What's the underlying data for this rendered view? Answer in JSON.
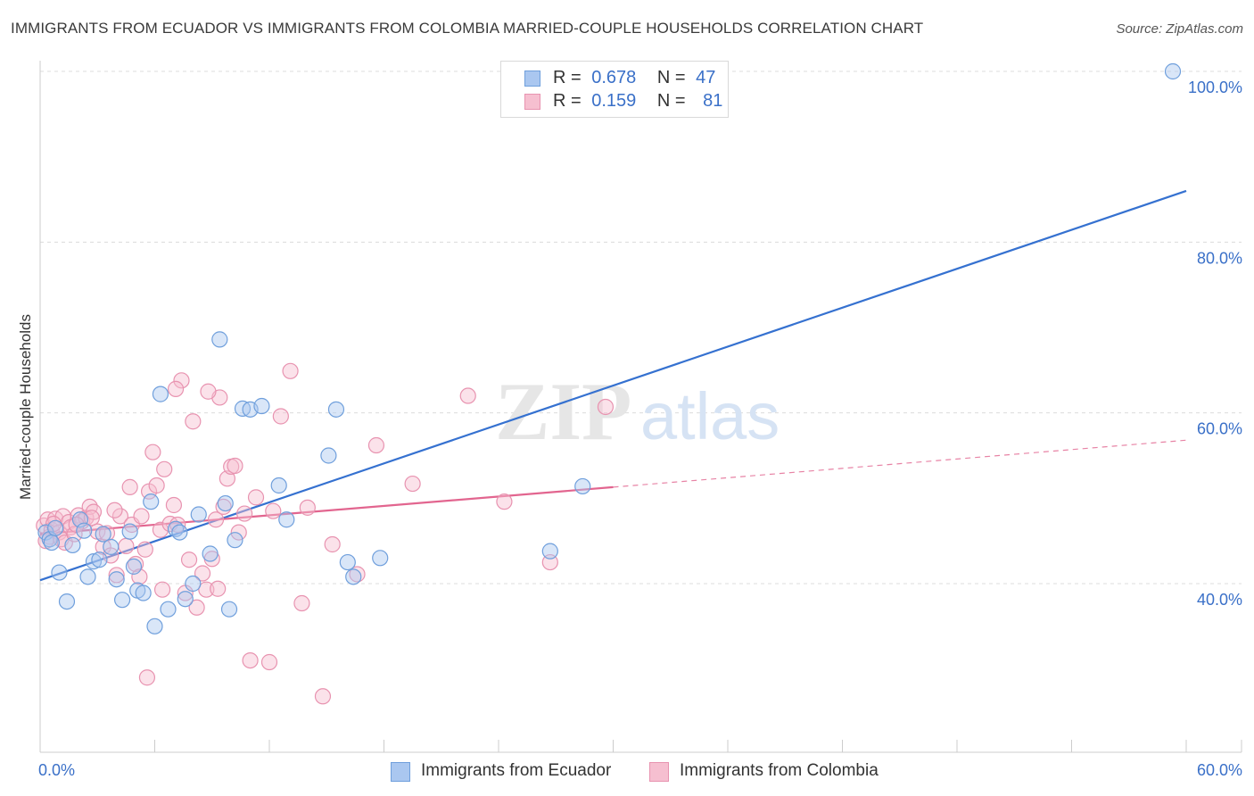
{
  "header": {
    "title": "IMMIGRANTS FROM ECUADOR VS IMMIGRANTS FROM COLOMBIA MARRIED-COUPLE HOUSEHOLDS CORRELATION CHART",
    "source": "Source: ZipAtlas.com"
  },
  "legend": {
    "ecuador": {
      "r_label": "R =",
      "r_value": "0.678",
      "n_label": "N =",
      "n_value": "47"
    },
    "colombia": {
      "r_label": "R =",
      "r_value": "0.159",
      "n_label": "N =",
      "n_value": "81"
    }
  },
  "bottom_legend": {
    "ecuador": "Immigrants from Ecuador",
    "colombia": "Immigrants from Colombia"
  },
  "watermark": {
    "zip": "ZIP",
    "atlas": "atlas"
  },
  "colors": {
    "ecuador_fill": "#aac7f0",
    "ecuador_stroke": "#6f9fdc",
    "ecuador_line": "#3571d0",
    "colombia_fill": "#f6bfd0",
    "colombia_stroke": "#e893b0",
    "colombia_line": "#e2658f",
    "tick_label": "#3a70c8",
    "grid": "#dcdcdc"
  },
  "chart_data": {
    "type": "scatter",
    "title": "IMMIGRANTS FROM ECUADOR VS IMMIGRANTS FROM COLOMBIA MARRIED-COUPLE HOUSEHOLDS CORRELATION CHART",
    "xlabel": "",
    "ylabel": "Married-couple Households",
    "xlim": [
      0,
      60
    ],
    "ylim": [
      20,
      102
    ],
    "x_tick_labels": [
      "0.0%",
      "60.0%"
    ],
    "y_ticks": [
      40,
      60,
      80,
      100
    ],
    "y_tick_labels": [
      "40.0%",
      "60.0%",
      "80.0%",
      "100.0%"
    ],
    "grid": true,
    "series": [
      {
        "name": "Immigrants from Ecuador",
        "r": 0.678,
        "n": 47,
        "trend": {
          "x": [
            0,
            60
          ],
          "y": [
            40.4,
            86.0
          ],
          "dashed_from": null
        },
        "points": [
          [
            0.3,
            46.0
          ],
          [
            0.5,
            45.2
          ],
          [
            0.6,
            44.8
          ],
          [
            0.8,
            46.5
          ],
          [
            1.0,
            41.3
          ],
          [
            1.4,
            37.9
          ],
          [
            1.7,
            44.5
          ],
          [
            2.1,
            47.5
          ],
          [
            2.3,
            46.2
          ],
          [
            2.5,
            40.8
          ],
          [
            2.8,
            42.6
          ],
          [
            3.1,
            42.8
          ],
          [
            3.3,
            45.8
          ],
          [
            3.7,
            44.3
          ],
          [
            4.0,
            40.5
          ],
          [
            4.3,
            38.1
          ],
          [
            4.7,
            46.1
          ],
          [
            4.9,
            42.0
          ],
          [
            5.1,
            39.2
          ],
          [
            5.4,
            38.9
          ],
          [
            5.8,
            49.6
          ],
          [
            6.0,
            35.0
          ],
          [
            6.3,
            62.2
          ],
          [
            6.7,
            37.0
          ],
          [
            7.1,
            46.4
          ],
          [
            7.3,
            46.0
          ],
          [
            7.6,
            38.2
          ],
          [
            8.0,
            40.0
          ],
          [
            8.3,
            48.1
          ],
          [
            8.9,
            43.5
          ],
          [
            9.4,
            68.6
          ],
          [
            9.7,
            49.4
          ],
          [
            9.9,
            37.0
          ],
          [
            10.2,
            45.1
          ],
          [
            10.6,
            60.5
          ],
          [
            11.0,
            60.4
          ],
          [
            11.6,
            60.8
          ],
          [
            12.5,
            51.5
          ],
          [
            12.9,
            47.5
          ],
          [
            15.1,
            55.0
          ],
          [
            15.5,
            60.4
          ],
          [
            16.1,
            42.5
          ],
          [
            16.4,
            40.8
          ],
          [
            17.8,
            43.0
          ],
          [
            26.7,
            43.8
          ],
          [
            28.4,
            51.4
          ],
          [
            59.3,
            100.0
          ]
        ]
      },
      {
        "name": "Immigrants from Colombia",
        "r": 0.159,
        "n": 81,
        "trend": {
          "x": [
            0,
            60
          ],
          "y": [
            45.8,
            56.8
          ],
          "dashed_from": 30
        },
        "points": [
          [
            0.2,
            46.8
          ],
          [
            0.4,
            47.5
          ],
          [
            0.5,
            45.5
          ],
          [
            0.6,
            46.3
          ],
          [
            0.8,
            47.6
          ],
          [
            1.0,
            46.0
          ],
          [
            1.1,
            45.2
          ],
          [
            1.2,
            47.9
          ],
          [
            1.3,
            44.8
          ],
          [
            1.5,
            47.2
          ],
          [
            1.6,
            46.6
          ],
          [
            1.8,
            45.8
          ],
          [
            2.0,
            48.0
          ],
          [
            2.2,
            47.3
          ],
          [
            2.4,
            47.7
          ],
          [
            2.6,
            49.0
          ],
          [
            2.8,
            48.4
          ],
          [
            3.0,
            46.1
          ],
          [
            3.3,
            44.3
          ],
          [
            3.5,
            45.9
          ],
          [
            3.7,
            43.3
          ],
          [
            4.0,
            41.0
          ],
          [
            4.2,
            47.9
          ],
          [
            4.5,
            44.4
          ],
          [
            4.7,
            51.3
          ],
          [
            4.8,
            46.9
          ],
          [
            5.0,
            42.3
          ],
          [
            5.2,
            40.8
          ],
          [
            5.5,
            44.0
          ],
          [
            5.7,
            50.8
          ],
          [
            5.9,
            55.4
          ],
          [
            6.1,
            51.5
          ],
          [
            6.3,
            46.3
          ],
          [
            6.5,
            53.4
          ],
          [
            6.8,
            47.0
          ],
          [
            7.0,
            49.2
          ],
          [
            7.2,
            46.9
          ],
          [
            7.4,
            63.8
          ],
          [
            7.6,
            38.9
          ],
          [
            7.8,
            42.8
          ],
          [
            8.0,
            59.0
          ],
          [
            8.2,
            37.2
          ],
          [
            8.5,
            41.2
          ],
          [
            8.7,
            39.3
          ],
          [
            9.0,
            42.9
          ],
          [
            9.2,
            47.5
          ],
          [
            9.4,
            61.8
          ],
          [
            9.6,
            49.0
          ],
          [
            9.8,
            52.3
          ],
          [
            10.0,
            53.7
          ],
          [
            10.2,
            53.8
          ],
          [
            10.4,
            46.0
          ],
          [
            10.7,
            48.2
          ],
          [
            11.0,
            31.0
          ],
          [
            11.3,
            50.1
          ],
          [
            12.0,
            30.8
          ],
          [
            12.2,
            48.5
          ],
          [
            13.1,
            64.9
          ],
          [
            13.7,
            37.7
          ],
          [
            14.0,
            48.9
          ],
          [
            14.8,
            26.8
          ],
          [
            15.3,
            44.6
          ],
          [
            16.6,
            41.1
          ],
          [
            17.6,
            56.2
          ],
          [
            19.5,
            51.7
          ],
          [
            22.4,
            62.0
          ],
          [
            24.3,
            49.6
          ],
          [
            26.7,
            42.5
          ],
          [
            29.6,
            60.7
          ],
          [
            0.3,
            45.0
          ],
          [
            0.7,
            47.0
          ],
          [
            1.9,
            46.9
          ],
          [
            2.7,
            47.7
          ],
          [
            3.9,
            48.6
          ],
          [
            5.3,
            47.9
          ],
          [
            5.6,
            29.0
          ],
          [
            6.4,
            39.3
          ],
          [
            7.1,
            62.8
          ],
          [
            8.8,
            62.5
          ],
          [
            12.6,
            59.6
          ],
          [
            9.3,
            39.4
          ]
        ]
      }
    ]
  }
}
